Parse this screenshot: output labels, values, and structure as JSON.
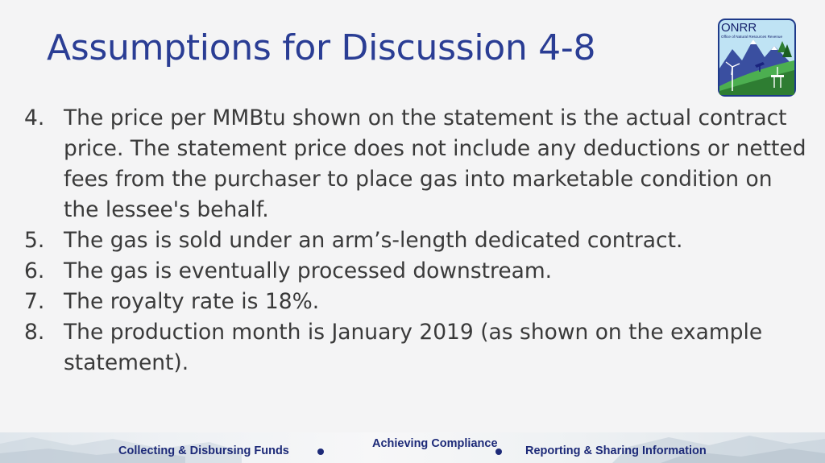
{
  "slide": {
    "title": "Assumptions for Discussion 4-8"
  },
  "logo": {
    "name": "ONRR",
    "subtitle": "Office of Natural Resources Revenue",
    "colors": {
      "sky": "#bfe3f4",
      "mountain": "#3a4fa0",
      "grass": "#4caf50",
      "border": "#1e3a8a"
    }
  },
  "items": [
    {
      "number": "4.",
      "text": "The price per MMBtu shown on the statement is the actual contract price.  The statement price does not include any deductions or netted fees from the purchaser to place gas into marketable condition on the lessee's behalf."
    },
    {
      "number": "5.",
      "text": "The gas is sold under an arm’s-length dedicated contract."
    },
    {
      "number": "6.",
      "text": "The gas is eventually processed downstream."
    },
    {
      "number": "7.",
      "text": "The royalty rate is 18%."
    },
    {
      "number": "8.",
      "text": "The production month is January 2019 (as shown on the example statement)."
    }
  ],
  "footer": {
    "items": [
      "Collecting & Disbursing Funds",
      "Achieving Compliance",
      "Reporting & Sharing Information"
    ],
    "accent": "#1d2a78"
  }
}
